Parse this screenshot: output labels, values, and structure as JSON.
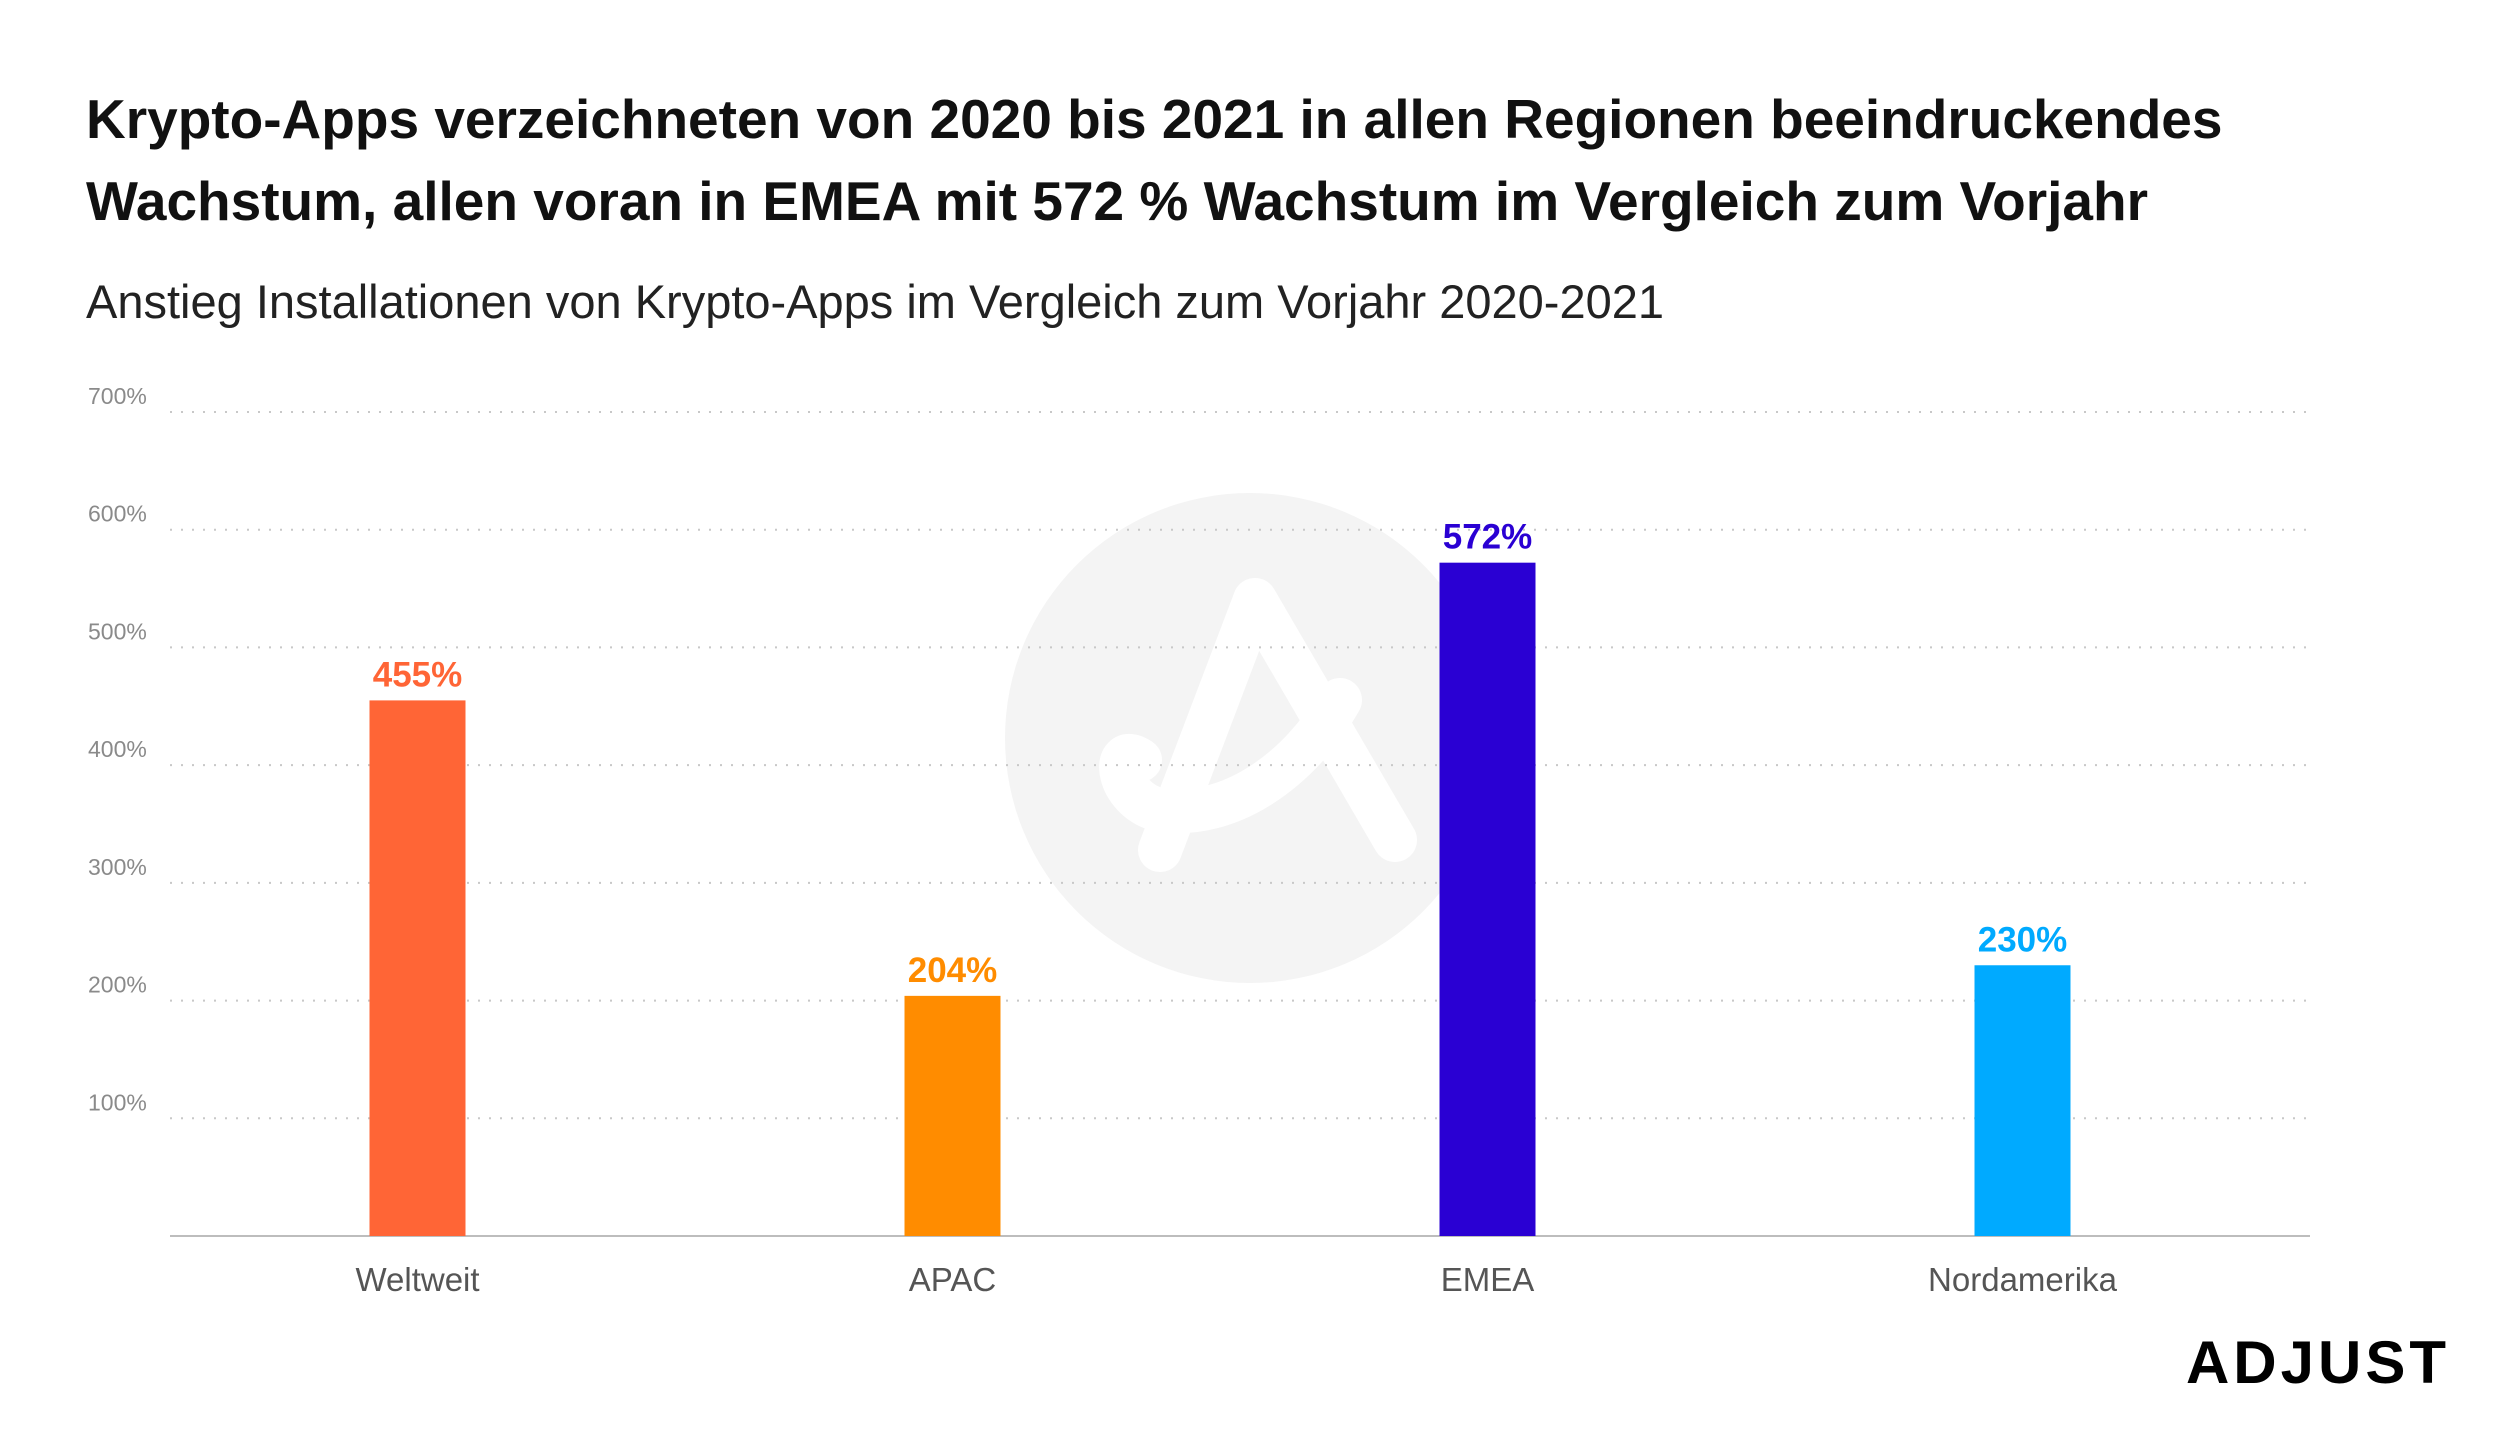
{
  "title": "Krypto-Apps verzeichneten von 2020 bis 2021 in allen Regionen beeindruckendes Wachstum, allen voran in EMEA mit 572 % Wachstum im Vergleich zum Vorjahr",
  "subtitle": "Anstieg Installationen von Krypto-Apps im Vergleich zum Vorjahr 2020-2021",
  "brand": {
    "name": "ADJUST",
    "watermark_icon": "adjust-logo-icon"
  },
  "chart_data": {
    "type": "bar",
    "title": "Krypto-Apps verzeichneten von 2020 bis 2021 in allen Regionen beeindruckendes Wachstum, allen voran in EMEA mit 572 % Wachstum im Vergleich zum Vorjahr",
    "subtitle": "Anstieg Installationen von Krypto-Apps im Vergleich zum Vorjahr 2020-2021",
    "categories": [
      "Weltweit",
      "APAC",
      "EMEA",
      "Nordamerika"
    ],
    "values": [
      455,
      204,
      572,
      230
    ],
    "data_labels": [
      "455%",
      "204%",
      "572%",
      "230%"
    ],
    "colors": [
      "#FF6536",
      "#FF8C00",
      "#2A00D3",
      "#00AAFF"
    ],
    "xlabel": "",
    "ylabel": "",
    "ylim": [
      0,
      700
    ],
    "yticks": [
      100,
      200,
      300,
      400,
      500,
      600,
      700
    ],
    "ytick_labels": [
      "100%",
      "200%",
      "300%",
      "400%",
      "500%",
      "600%",
      "700%"
    ],
    "grid": "horizontal-dotted",
    "legend": "none"
  }
}
